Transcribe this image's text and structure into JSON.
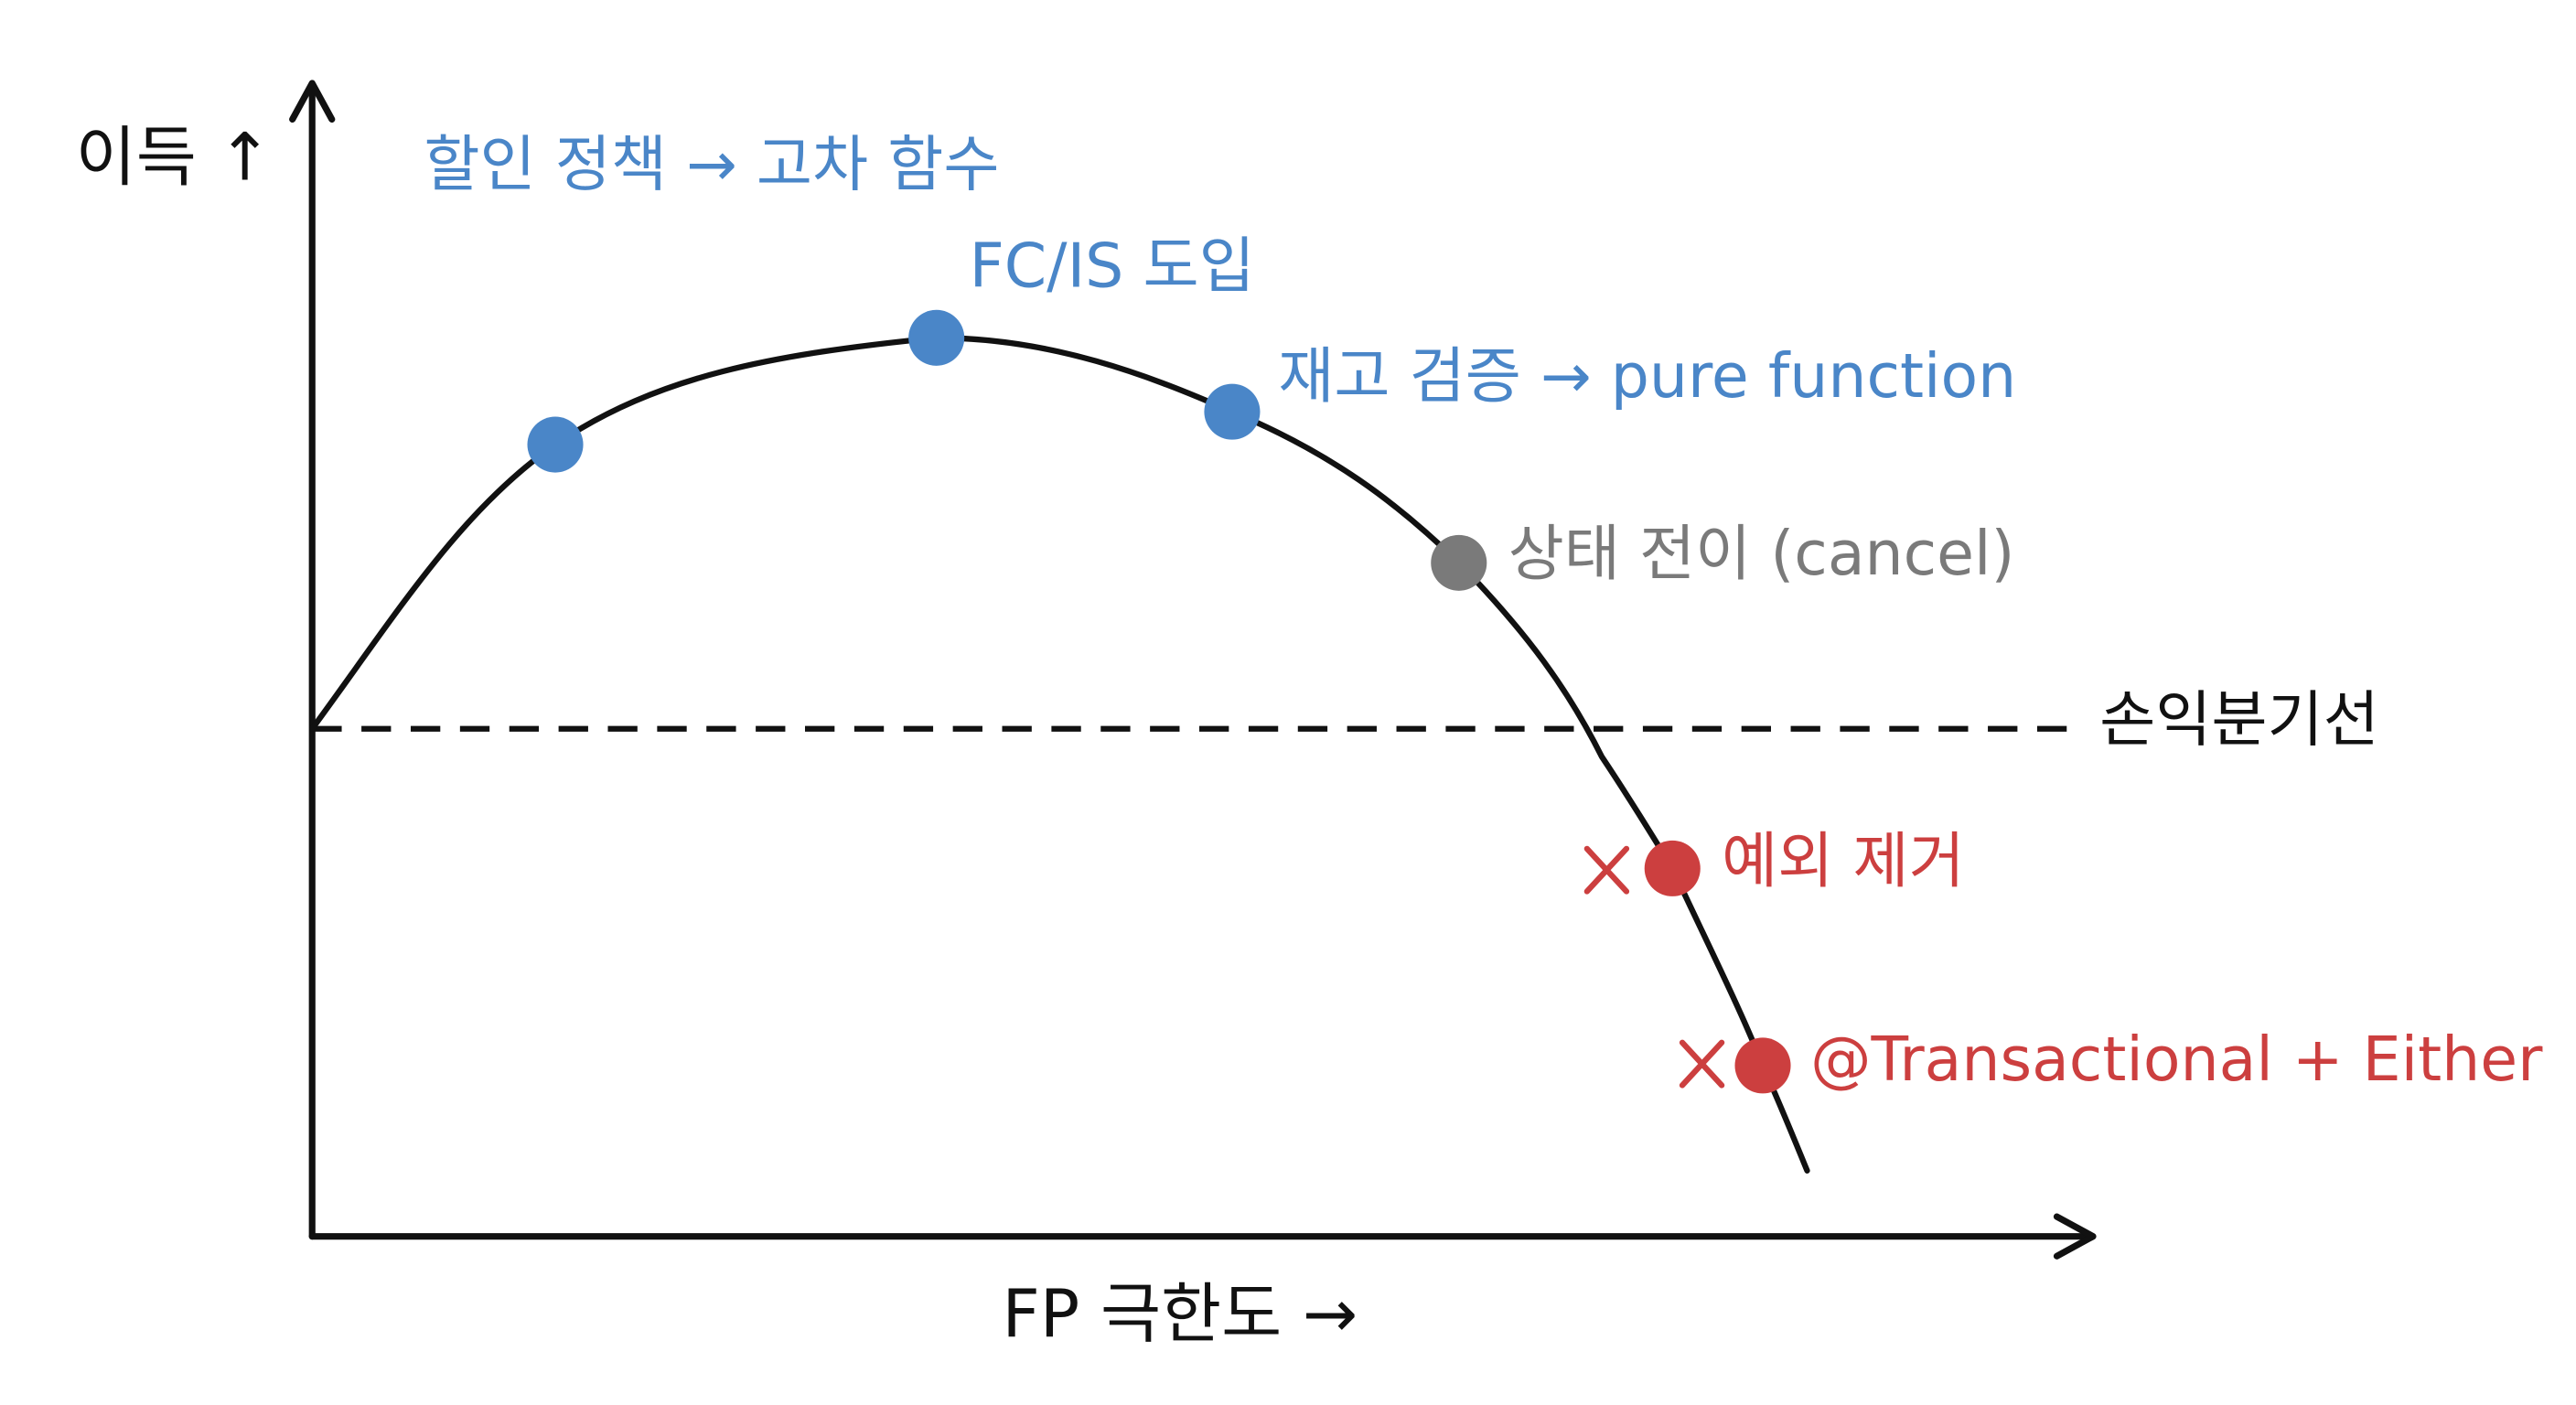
{
  "y_axis_label": "이득 ↑",
  "x_axis_label": "FP 극한도 →",
  "breakeven_label": "손익분기선",
  "annotations": [
    "할인 정책 → 고차 함수",
    "FC/IS 도입",
    "재고 검증 → pure function",
    "상태 전이 (cancel)",
    "예외 제거",
    "@Transactional + Either"
  ]
}
